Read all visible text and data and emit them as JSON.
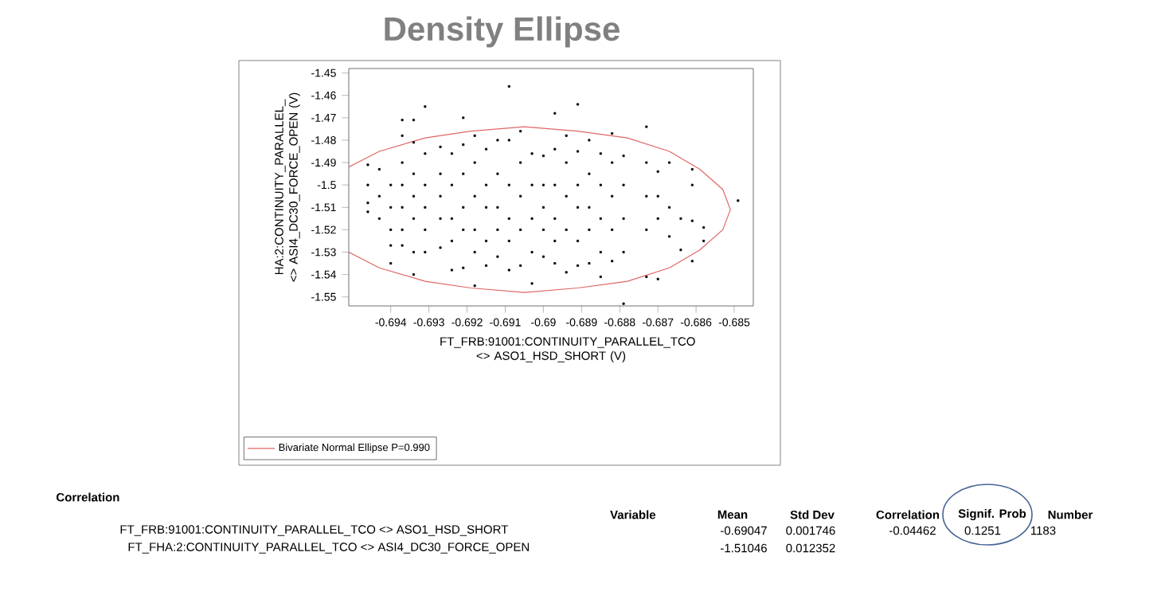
{
  "chart_data": {
    "type": "scatter",
    "title": "Density  Ellipse",
    "xlabel": "FT_FRB:91001:CONTINUITY_PARALLEL_TCO <> ASO1_HSD_SHORT (V)",
    "ylabel": "HA:2:CONTINUITY_PARALLEL_ <> ASI4_DC30_FORCE_OPEN (V)",
    "xlim": [
      -0.6951,
      -0.6845
    ],
    "ylim": [
      -1.554,
      -1.448
    ],
    "xticks": [
      -0.694,
      -0.693,
      -0.692,
      -0.691,
      -0.69,
      -0.689,
      -0.688,
      -0.687,
      -0.686,
      -0.685
    ],
    "yticks": [
      -1.55,
      -1.54,
      -1.53,
      -1.52,
      -1.51,
      -1.5,
      -1.49,
      -1.48,
      -1.47,
      -1.46,
      -1.45
    ],
    "grid": false,
    "legend": "bottom left",
    "series": [
      {
        "type": "scatter",
        "color": "#000000",
        "marker": "square",
        "x": [
          -0.6946,
          -0.6946,
          -0.6946,
          -0.6946,
          -0.6943,
          -0.6943,
          -0.6943,
          -0.694,
          -0.694,
          -0.694,
          -0.694,
          -0.694,
          -0.6937,
          -0.6937,
          -0.6937,
          -0.6937,
          -0.6937,
          -0.6937,
          -0.6937,
          -0.6934,
          -0.6934,
          -0.6934,
          -0.6934,
          -0.6934,
          -0.6934,
          -0.6934,
          -0.6931,
          -0.6931,
          -0.6931,
          -0.6931,
          -0.6931,
          -0.6931,
          -0.6927,
          -0.6927,
          -0.6927,
          -0.6927,
          -0.6927,
          -0.6924,
          -0.6924,
          -0.6924,
          -0.6924,
          -0.6924,
          -0.6921,
          -0.6921,
          -0.6921,
          -0.6921,
          -0.6921,
          -0.6921,
          -0.6918,
          -0.6918,
          -0.6918,
          -0.6918,
          -0.6918,
          -0.6918,
          -0.6915,
          -0.6915,
          -0.6915,
          -0.6915,
          -0.6915,
          -0.6912,
          -0.6912,
          -0.6912,
          -0.6912,
          -0.6912,
          -0.6909,
          -0.6909,
          -0.6909,
          -0.6909,
          -0.6909,
          -0.6909,
          -0.6906,
          -0.6906,
          -0.6906,
          -0.6906,
          -0.6906,
          -0.6903,
          -0.6903,
          -0.6903,
          -0.6903,
          -0.6903,
          -0.69,
          -0.69,
          -0.69,
          -0.69,
          -0.69,
          -0.6897,
          -0.6897,
          -0.6897,
          -0.6897,
          -0.6897,
          -0.6897,
          -0.6894,
          -0.6894,
          -0.6894,
          -0.6894,
          -0.6894,
          -0.6891,
          -0.6891,
          -0.6891,
          -0.6891,
          -0.6891,
          -0.6891,
          -0.6888,
          -0.6888,
          -0.6888,
          -0.6888,
          -0.6888,
          -0.6885,
          -0.6885,
          -0.6885,
          -0.6885,
          -0.6885,
          -0.6882,
          -0.6882,
          -0.6882,
          -0.6882,
          -0.6882,
          -0.6879,
          -0.6879,
          -0.6879,
          -0.6879,
          -0.6879,
          -0.6873,
          -0.6873,
          -0.6873,
          -0.6873,
          -0.6873,
          -0.687,
          -0.687,
          -0.687,
          -0.687,
          -0.6867,
          -0.6867,
          -0.6867,
          -0.6864,
          -0.6864,
          -0.6861,
          -0.6861,
          -0.6861,
          -0.6861,
          -0.6858,
          -0.6858,
          -0.6849
        ],
        "values": [
          -1.491,
          -1.5,
          -1.508,
          -1.512,
          -1.493,
          -1.505,
          -1.515,
          -1.5,
          -1.51,
          -1.52,
          -1.527,
          -1.535,
          -1.471,
          -1.478,
          -1.49,
          -1.5,
          -1.51,
          -1.52,
          -1.527,
          -1.471,
          -1.481,
          -1.495,
          -1.505,
          -1.515,
          -1.53,
          -1.54,
          -1.465,
          -1.486,
          -1.5,
          -1.51,
          -1.52,
          -1.53,
          -1.483,
          -1.495,
          -1.505,
          -1.515,
          -1.528,
          -1.486,
          -1.5,
          -1.515,
          -1.525,
          -1.538,
          -1.47,
          -1.482,
          -1.495,
          -1.51,
          -1.52,
          -1.537,
          -1.478,
          -1.49,
          -1.505,
          -1.52,
          -1.53,
          -1.545,
          -1.484,
          -1.5,
          -1.51,
          -1.525,
          -1.536,
          -1.48,
          -1.495,
          -1.51,
          -1.52,
          -1.532,
          -1.456,
          -1.48,
          -1.5,
          -1.515,
          -1.525,
          -1.538,
          -1.476,
          -1.49,
          -1.505,
          -1.52,
          -1.536,
          -1.486,
          -1.5,
          -1.515,
          -1.53,
          -1.544,
          -1.487,
          -1.5,
          -1.51,
          -1.52,
          -1.532,
          -1.468,
          -1.484,
          -1.5,
          -1.515,
          -1.525,
          -1.535,
          -1.478,
          -1.49,
          -1.505,
          -1.52,
          -1.539,
          -1.464,
          -1.485,
          -1.5,
          -1.51,
          -1.525,
          -1.536,
          -1.48,
          -1.495,
          -1.51,
          -1.52,
          -1.535,
          -1.486,
          -1.5,
          -1.515,
          -1.53,
          -1.541,
          -1.477,
          -1.49,
          -1.505,
          -1.52,
          -1.534,
          -1.487,
          -1.5,
          -1.515,
          -1.53,
          -1.553,
          -1.474,
          -1.49,
          -1.505,
          -1.52,
          -1.541,
          -1.494,
          -1.505,
          -1.515,
          -1.542,
          -1.49,
          -1.51,
          -1.523,
          -1.515,
          -1.529,
          -1.493,
          -1.5,
          -1.516,
          -1.534,
          -1.519,
          -1.525,
          -1.507
        ]
      },
      {
        "type": "line",
        "name": "Bivariate Normal Ellipse P=0.990",
        "color": "#e06666",
        "x": [
          -0.6951,
          -0.6943,
          -0.6931,
          -0.6919,
          -0.6905,
          -0.6891,
          -0.6878,
          -0.6867,
          -0.6859,
          -0.6853,
          -0.6851,
          -0.6853,
          -0.6859,
          -0.6867,
          -0.6878,
          -0.6891,
          -0.6905,
          -0.6919,
          -0.6931,
          -0.6943,
          -0.6951
        ],
        "values": [
          -1.492,
          -1.485,
          -1.479,
          -1.476,
          -1.474,
          -1.476,
          -1.479,
          -1.485,
          -1.493,
          -1.502,
          -1.511,
          -1.52,
          -1.529,
          -1.537,
          -1.543,
          -1.546,
          -1.548,
          -1.546,
          -1.543,
          -1.537,
          -1.53
        ]
      }
    ],
    "annotations": [
      "Correlation",
      "Variable",
      "Mean",
      "Std Dev",
      "Correlation",
      "Signif. Prob",
      "Number",
      "FT_FRB:91001:CONTINUITY_PARALLEL_TCO <> ASO1_HSD_SHORT",
      "-0.69047",
      "0.001746",
      "-0.04462",
      "0.1251",
      "1183",
      "FT_FHA:2:CONTINUITY_PARALLEL_TCO <> ASI4_DC30_FORCE_OPEN",
      "-1.51046",
      "0.012352"
    ]
  }
}
